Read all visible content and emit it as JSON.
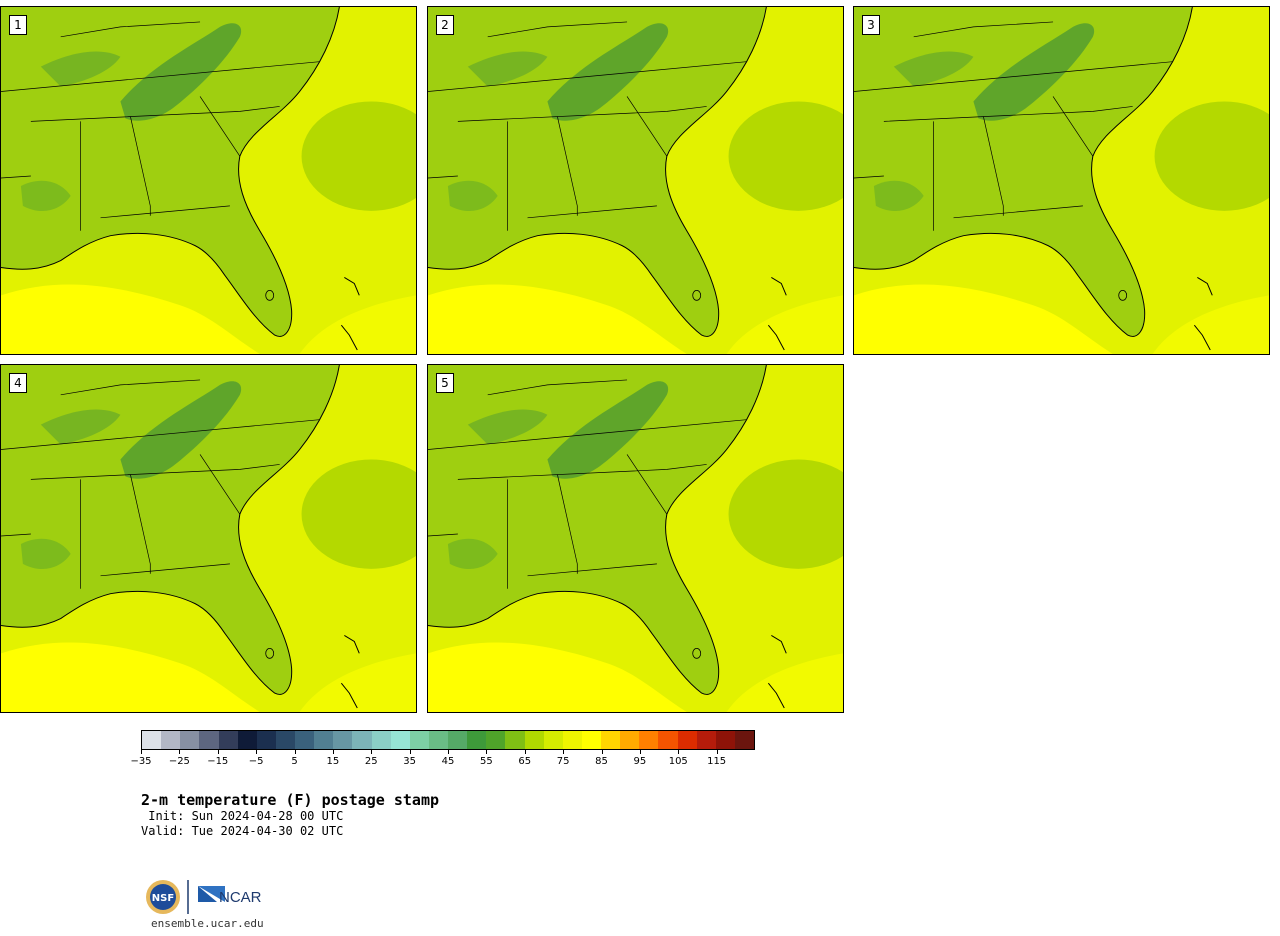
{
  "panels": [
    {
      "label": "1"
    },
    {
      "label": "2"
    },
    {
      "label": "3"
    },
    {
      "label": "4"
    },
    {
      "label": "5"
    }
  ],
  "colorbar": {
    "colors": [
      "#dde1e8",
      "#b2b7c5",
      "#8790a3",
      "#5d6680",
      "#333d5a",
      "#0f1b38",
      "#1b2f4f",
      "#2a4866",
      "#3a617c",
      "#517f92",
      "#6797a4",
      "#7cb4b8",
      "#8bcfc6",
      "#96e4d5",
      "#7dd0a5",
      "#6abd86",
      "#55aa67",
      "#3e9a3a",
      "#4fa42a",
      "#7fbf14",
      "#b0d900",
      "#d4ec00",
      "#eef500",
      "#ffff00",
      "#ffd500",
      "#ffab00",
      "#ff8000",
      "#f55400",
      "#dd2c00",
      "#b51c0b",
      "#8e1308",
      "#6b150e"
    ],
    "tick_labels": [
      "−35",
      "−25",
      "−15",
      "−5",
      "5",
      "15",
      "25",
      "35",
      "45",
      "55",
      "65",
      "75",
      "85",
      "95",
      "105",
      "115"
    ]
  },
  "title": "2-m temperature (F) postage stamp",
  "init": " Init: Sun 2024-04-28 00 UTC",
  "valid": "Valid: Tue 2024-04-30 02 UTC",
  "logo": {
    "left_text": "NSF",
    "right_text": "NCAR"
  },
  "site": "ensemble.ucar.edu"
}
